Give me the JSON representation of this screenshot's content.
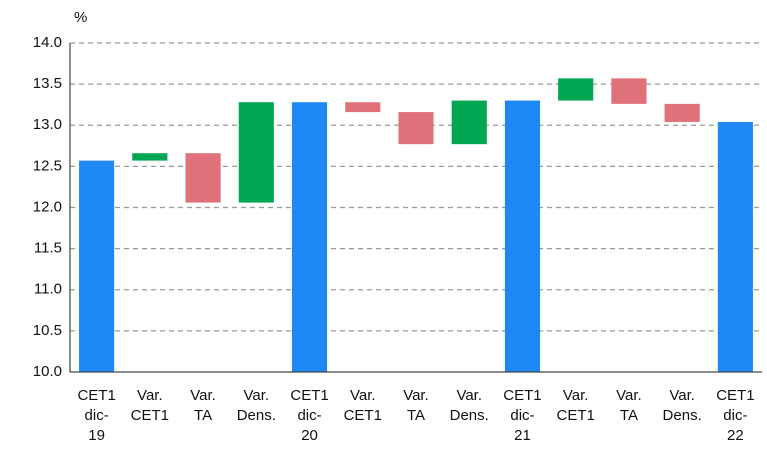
{
  "chart_data": {
    "type": "waterfall",
    "y_label": "%",
    "categories": [
      [
        "CET1",
        "dic-",
        "19"
      ],
      [
        "Var.",
        "CET1"
      ],
      [
        "Var.",
        "TA"
      ],
      [
        "Var.",
        "Dens."
      ],
      [
        "CET1",
        "dic-",
        "20"
      ],
      [
        "Var.",
        "CET1"
      ],
      [
        "Var.",
        "TA"
      ],
      [
        "Var.",
        "Dens."
      ],
      [
        "CET1",
        "dic-",
        "21"
      ],
      [
        "Var.",
        "CET1"
      ],
      [
        "Var.",
        "TA"
      ],
      [
        "Var.",
        "Dens."
      ],
      [
        "CET1",
        "dic-",
        "22"
      ]
    ],
    "values": [
      12.57,
      0.09,
      -0.6,
      1.22,
      13.28,
      -0.12,
      -0.39,
      0.53,
      13.3,
      0.27,
      -0.31,
      -0.22,
      13.04
    ],
    "is_total": [
      true,
      false,
      false,
      false,
      true,
      false,
      false,
      false,
      true,
      false,
      false,
      false,
      true
    ],
    "colors": {
      "total": "#1e88f5",
      "increase": "#00a651",
      "decrease": "#e0707a"
    },
    "ylim": [
      10.0,
      14.0
    ],
    "yticks": [
      {
        "value": 10,
        "label": "10.0"
      },
      {
        "value": 10.5,
        "label": "10.5"
      },
      {
        "value": 11,
        "label": "11.0"
      },
      {
        "value": 11.5,
        "label": "11.5"
      },
      {
        "value": 12,
        "label": "12.0"
      },
      {
        "value": 12.5,
        "label": "12.5"
      },
      {
        "value": 13,
        "label": "13.0"
      },
      {
        "value": 13.5,
        "label": "13.5"
      },
      {
        "value": 14,
        "label": "14.0"
      }
    ],
    "grid": true
  }
}
